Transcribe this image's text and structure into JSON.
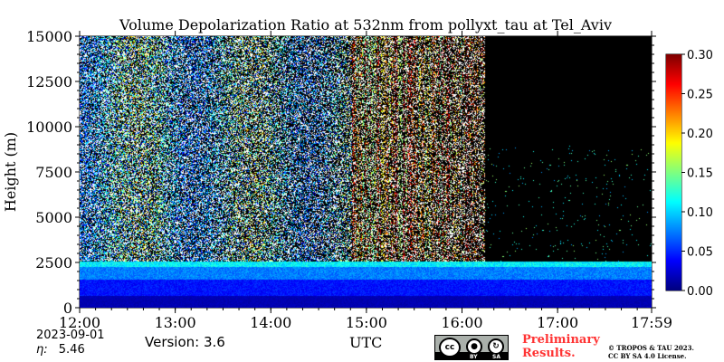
{
  "chart_data": {
    "type": "heatmap",
    "title": "Volume Depolarization Ratio at 532nm from pollyxt_tau at Tel_Aviv",
    "xlabel": "UTC",
    "ylabel": "Height (m)",
    "x_ticks": [
      "12:00",
      "13:00",
      "14:00",
      "15:00",
      "16:00",
      "17:00",
      "17:59"
    ],
    "x_range_hours": [
      12.0,
      17.9833
    ],
    "y_ticks": [
      0,
      2500,
      5000,
      7500,
      10000,
      12500,
      15000
    ],
    "y_range": [
      0,
      15000
    ],
    "colorbar": {
      "range": [
        0.0,
        0.3
      ],
      "ticks": [
        "0.00",
        "0.05",
        "0.10",
        "0.15",
        "0.20",
        "0.25",
        "0.30"
      ],
      "colormap": "jet"
    },
    "layers": [
      {
        "name": "boundary layer",
        "height_range": [
          0,
          2500
        ],
        "depol_range": [
          0.02,
          0.12
        ]
      },
      {
        "name": "noisy free troposphere",
        "height_range": [
          2500,
          15000
        ],
        "time_range": [
          "12:00",
          "16:15"
        ]
      },
      {
        "name": "no signal",
        "height_range": [
          2700,
          15000
        ],
        "time_range": [
          "16:15",
          "17:59"
        ]
      }
    ]
  },
  "meta": {
    "date": "2023-09-01",
    "eta_label": "η:",
    "eta_value": "5.46",
    "version": "Version: 3.6",
    "preliminary_line1": "Preliminary",
    "preliminary_line2": "Results.",
    "copyright_line1": "© TROPOS & TAU 2023.",
    "copyright_line2": "CC BY SA 4.0 License.",
    "cc_by": "BY",
    "cc_sa": "SA",
    "cc_logo": "cc"
  },
  "colors": {
    "prelim": "#ff3333",
    "background_nosignal": "#000000"
  }
}
